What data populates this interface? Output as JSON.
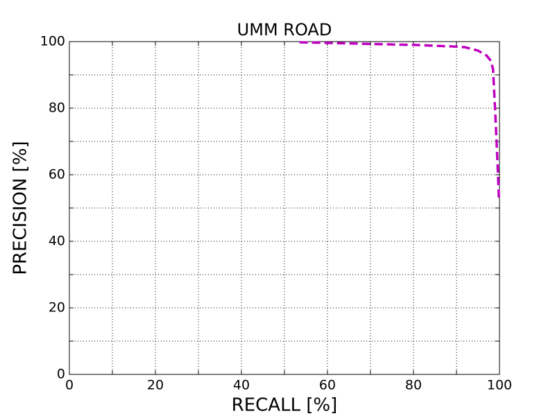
{
  "chart_data": {
    "type": "line",
    "title": "UMM ROAD",
    "x_label": "RECALL [%]",
    "y_label": "PRECISION [%]",
    "x": [
      53.5,
      60,
      70,
      80,
      90,
      92,
      95,
      97,
      98,
      98.5,
      99,
      99.5,
      99.9
    ],
    "series": [
      {
        "name": "UMM ROAD",
        "color": "#bf00bf",
        "values": [
          99.8,
          99.6,
          99.3,
          99.0,
          98.5,
          98.3,
          97.3,
          95.8,
          94.2,
          91.7,
          79,
          64.6,
          52
        ]
      }
    ],
    "xlim": [
      0,
      100
    ],
    "ylim": [
      0,
      100
    ],
    "xticks": [
      0,
      20,
      40,
      60,
      80,
      100
    ],
    "yticks": [
      0,
      20,
      40,
      60,
      80,
      100
    ],
    "minor_xticks": [
      10,
      30,
      50,
      70,
      90
    ],
    "minor_yticks": [
      10,
      30,
      50,
      70,
      90
    ],
    "grid": true
  }
}
